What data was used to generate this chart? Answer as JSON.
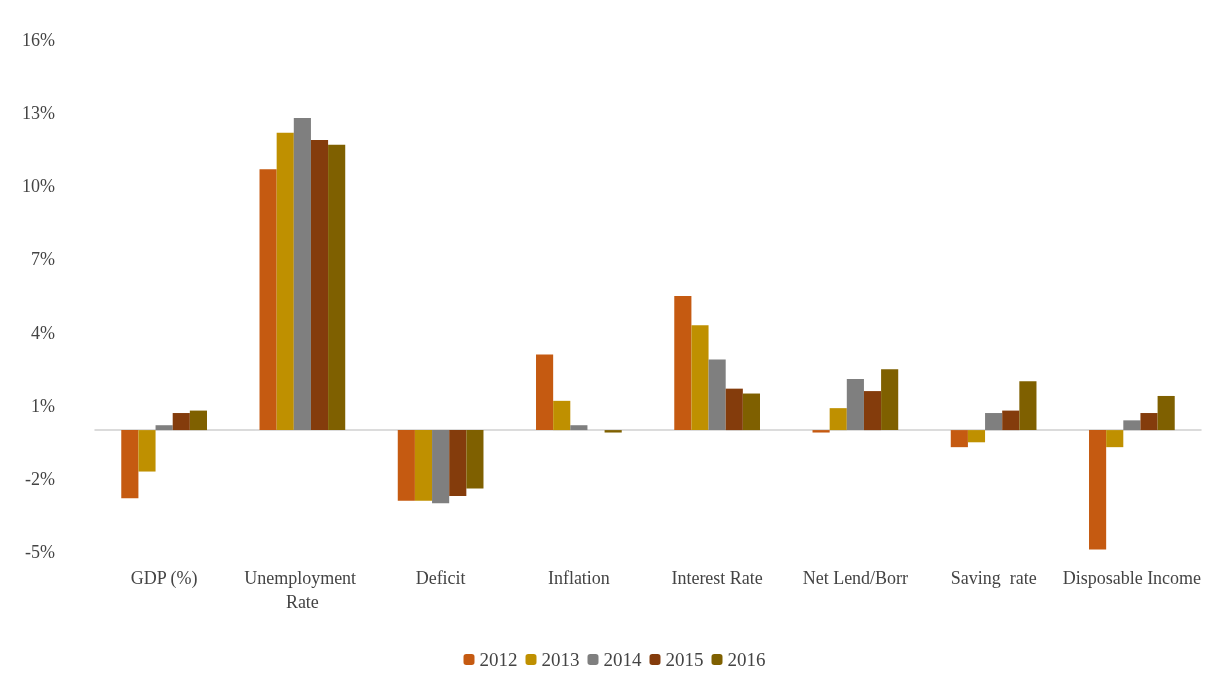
{
  "chart_data": {
    "type": "bar",
    "categories": [
      "GDP (%)",
      "Unemployment Rate",
      "Deficit",
      "Inflation",
      "Interest Rate",
      "Net Lend/Borr",
      "Saving  rate",
      "Disposable Income"
    ],
    "series": [
      {
        "name": "2012",
        "color": "#c55a11",
        "values": [
          -2.8,
          10.7,
          -2.9,
          3.1,
          5.5,
          -0.1,
          -0.7,
          -4.9
        ]
      },
      {
        "name": "2013",
        "color": "#bf9000",
        "values": [
          -1.7,
          12.2,
          -2.9,
          1.2,
          4.3,
          0.9,
          -0.5,
          -0.7
        ]
      },
      {
        "name": "2014",
        "color": "#7f7f7f",
        "values": [
          0.2,
          12.8,
          -3.0,
          0.2,
          2.9,
          2.1,
          0.7,
          0.4
        ]
      },
      {
        "name": "2015",
        "color": "#843c0c",
        "values": [
          0.7,
          11.9,
          -2.7,
          0.0,
          1.7,
          1.6,
          0.8,
          0.7
        ]
      },
      {
        "name": "2016",
        "color": "#7f6000",
        "values": [
          0.8,
          11.7,
          -2.4,
          -0.1,
          1.5,
          2.5,
          2.0,
          1.4
        ]
      }
    ],
    "ylim": [
      -5,
      16
    ],
    "yticks": [
      {
        "value": -5,
        "label": "-5%"
      },
      {
        "value": -2,
        "label": "-2%"
      },
      {
        "value": 1,
        "label": "1%"
      },
      {
        "value": 4,
        "label": "4%"
      },
      {
        "value": 7,
        "label": "7%"
      },
      {
        "value": 10,
        "label": "10%"
      },
      {
        "value": 13,
        "label": "13%"
      },
      {
        "value": 16,
        "label": "16%"
      }
    ],
    "grid": false,
    "legend": "bottom"
  }
}
